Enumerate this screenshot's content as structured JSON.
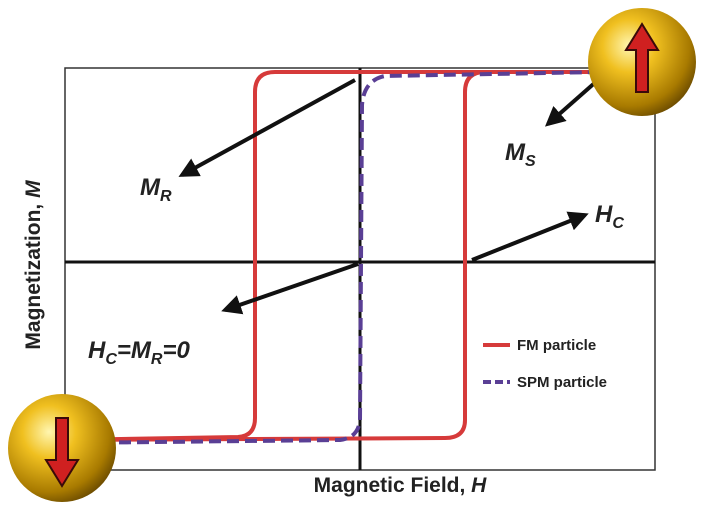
{
  "axes": {
    "y_label": {
      "text": "Magnetization, ",
      "var": "M"
    },
    "x_label": {
      "text": "Magnetic Field, ",
      "var": "H"
    }
  },
  "annotations": {
    "remanence": {
      "main": "M",
      "sub": "R"
    },
    "saturation": {
      "main": "M",
      "sub": "S"
    },
    "coercivity": {
      "main": "H",
      "sub": "C"
    },
    "superparamagnetic": {
      "main1": "H",
      "sub1": "C",
      "mid": "=M",
      "sub2": "R",
      "end": "=0"
    }
  },
  "legend": [
    {
      "label": "FM particle",
      "color": "#d63a3a"
    },
    {
      "label": "SPM particle",
      "color": "#5a3f95"
    }
  ]
}
